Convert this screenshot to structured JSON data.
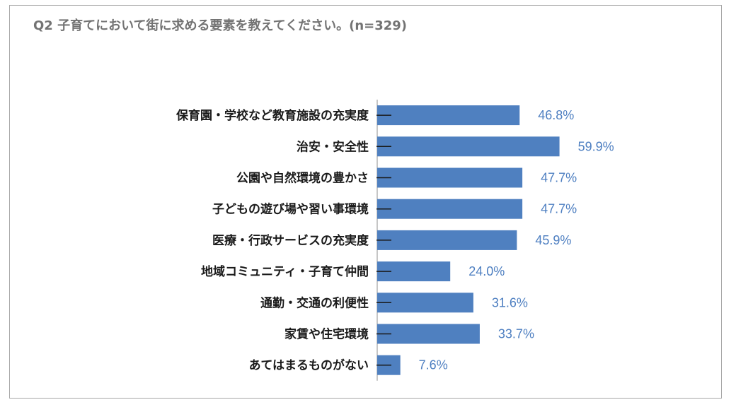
{
  "chart_data": {
    "type": "bar",
    "orientation": "horizontal",
    "title": "Q2 子育てにおいて街に求める要素を教えてください。(n=329)",
    "categories": [
      "保育園・学校など教育施設の充実度",
      "治安・安全性",
      "公園や自然環境の豊かさ",
      "子どもの遊び場や習い事環境",
      "医療・行政サービスの充実度",
      "地域コミュニティ・子育て仲間",
      "通勤・交通の利便性",
      "家賃や住宅環境",
      "あてはまるものがない"
    ],
    "values": [
      46.8,
      59.9,
      47.7,
      47.7,
      45.9,
      24.0,
      31.6,
      33.7,
      7.6
    ],
    "value_labels": [
      "46.8%",
      "59.9%",
      "47.7%",
      "47.7%",
      "45.9%",
      "24.0%",
      "31.6%",
      "33.7%",
      "7.6%"
    ],
    "unit": "%",
    "bar_color": "#4f80c0",
    "label_color": "#4e7fc1",
    "grid": false,
    "legend": "none"
  }
}
